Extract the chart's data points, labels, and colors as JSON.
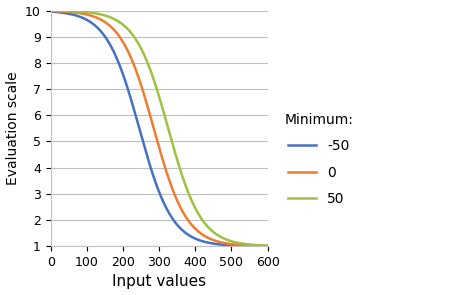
{
  "title": "",
  "xlabel": "Input values",
  "ylabel": "Evaluation scale",
  "xlim": [
    0,
    600
  ],
  "ylim": [
    1,
    10
  ],
  "xticks": [
    0,
    100,
    200,
    300,
    400,
    500,
    600
  ],
  "yticks": [
    1,
    2,
    3,
    4,
    5,
    6,
    7,
    8,
    9,
    10
  ],
  "curves": [
    {
      "label": "-50",
      "color": "#4472C4",
      "midpoint": 245,
      "steepness": 0.022
    },
    {
      "label": "0",
      "color": "#ED7D31",
      "midpoint": 285,
      "steepness": 0.022
    },
    {
      "label": "50",
      "color": "#9DC241",
      "midpoint": 325,
      "steepness": 0.022
    }
  ],
  "legend_title": "Minimum:",
  "background_color": "#ffffff",
  "grid_color": "#bfbfbf",
  "xlabel_fontsize": 11,
  "ylabel_fontsize": 10,
  "legend_fontsize": 10,
  "tick_fontsize": 9
}
